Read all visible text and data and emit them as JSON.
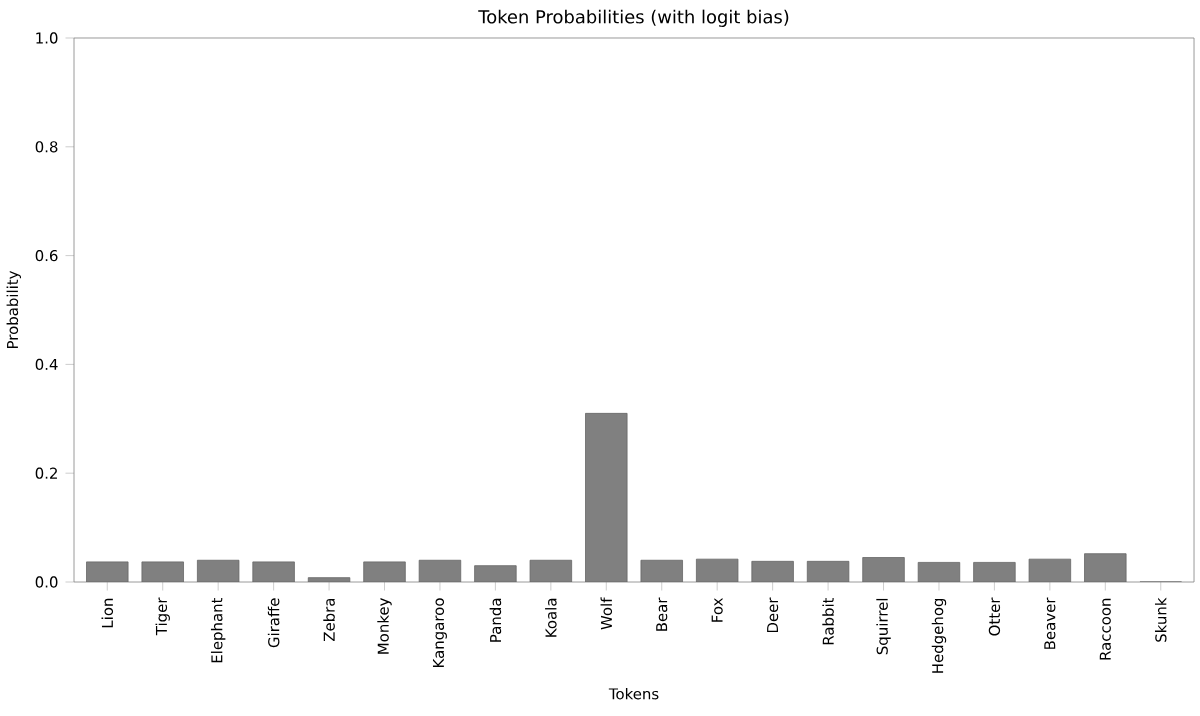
{
  "chart_data": {
    "type": "bar",
    "title": "Token Probabilities (with logit bias)",
    "xlabel": "Tokens",
    "ylabel": "Probability",
    "categories": [
      "Lion",
      "Tiger",
      "Elephant",
      "Giraffe",
      "Zebra",
      "Monkey",
      "Kangaroo",
      "Panda",
      "Koala",
      "Wolf",
      "Bear",
      "Fox",
      "Deer",
      "Rabbit",
      "Squirrel",
      "Hedgehog",
      "Otter",
      "Beaver",
      "Raccoon",
      "Skunk"
    ],
    "values": [
      0.037,
      0.037,
      0.04,
      0.037,
      0.008,
      0.037,
      0.04,
      0.03,
      0.04,
      0.31,
      0.04,
      0.042,
      0.038,
      0.038,
      0.045,
      0.036,
      0.036,
      0.042,
      0.052,
      0.0
    ],
    "color": "#808080",
    "ylim": [
      0,
      1.0
    ],
    "yticks": [
      {
        "value": 0,
        "label": "0.0"
      },
      0.2,
      0.4,
      0.6,
      0.8,
      {
        "value": 1,
        "label": "1.0"
      }
    ]
  }
}
